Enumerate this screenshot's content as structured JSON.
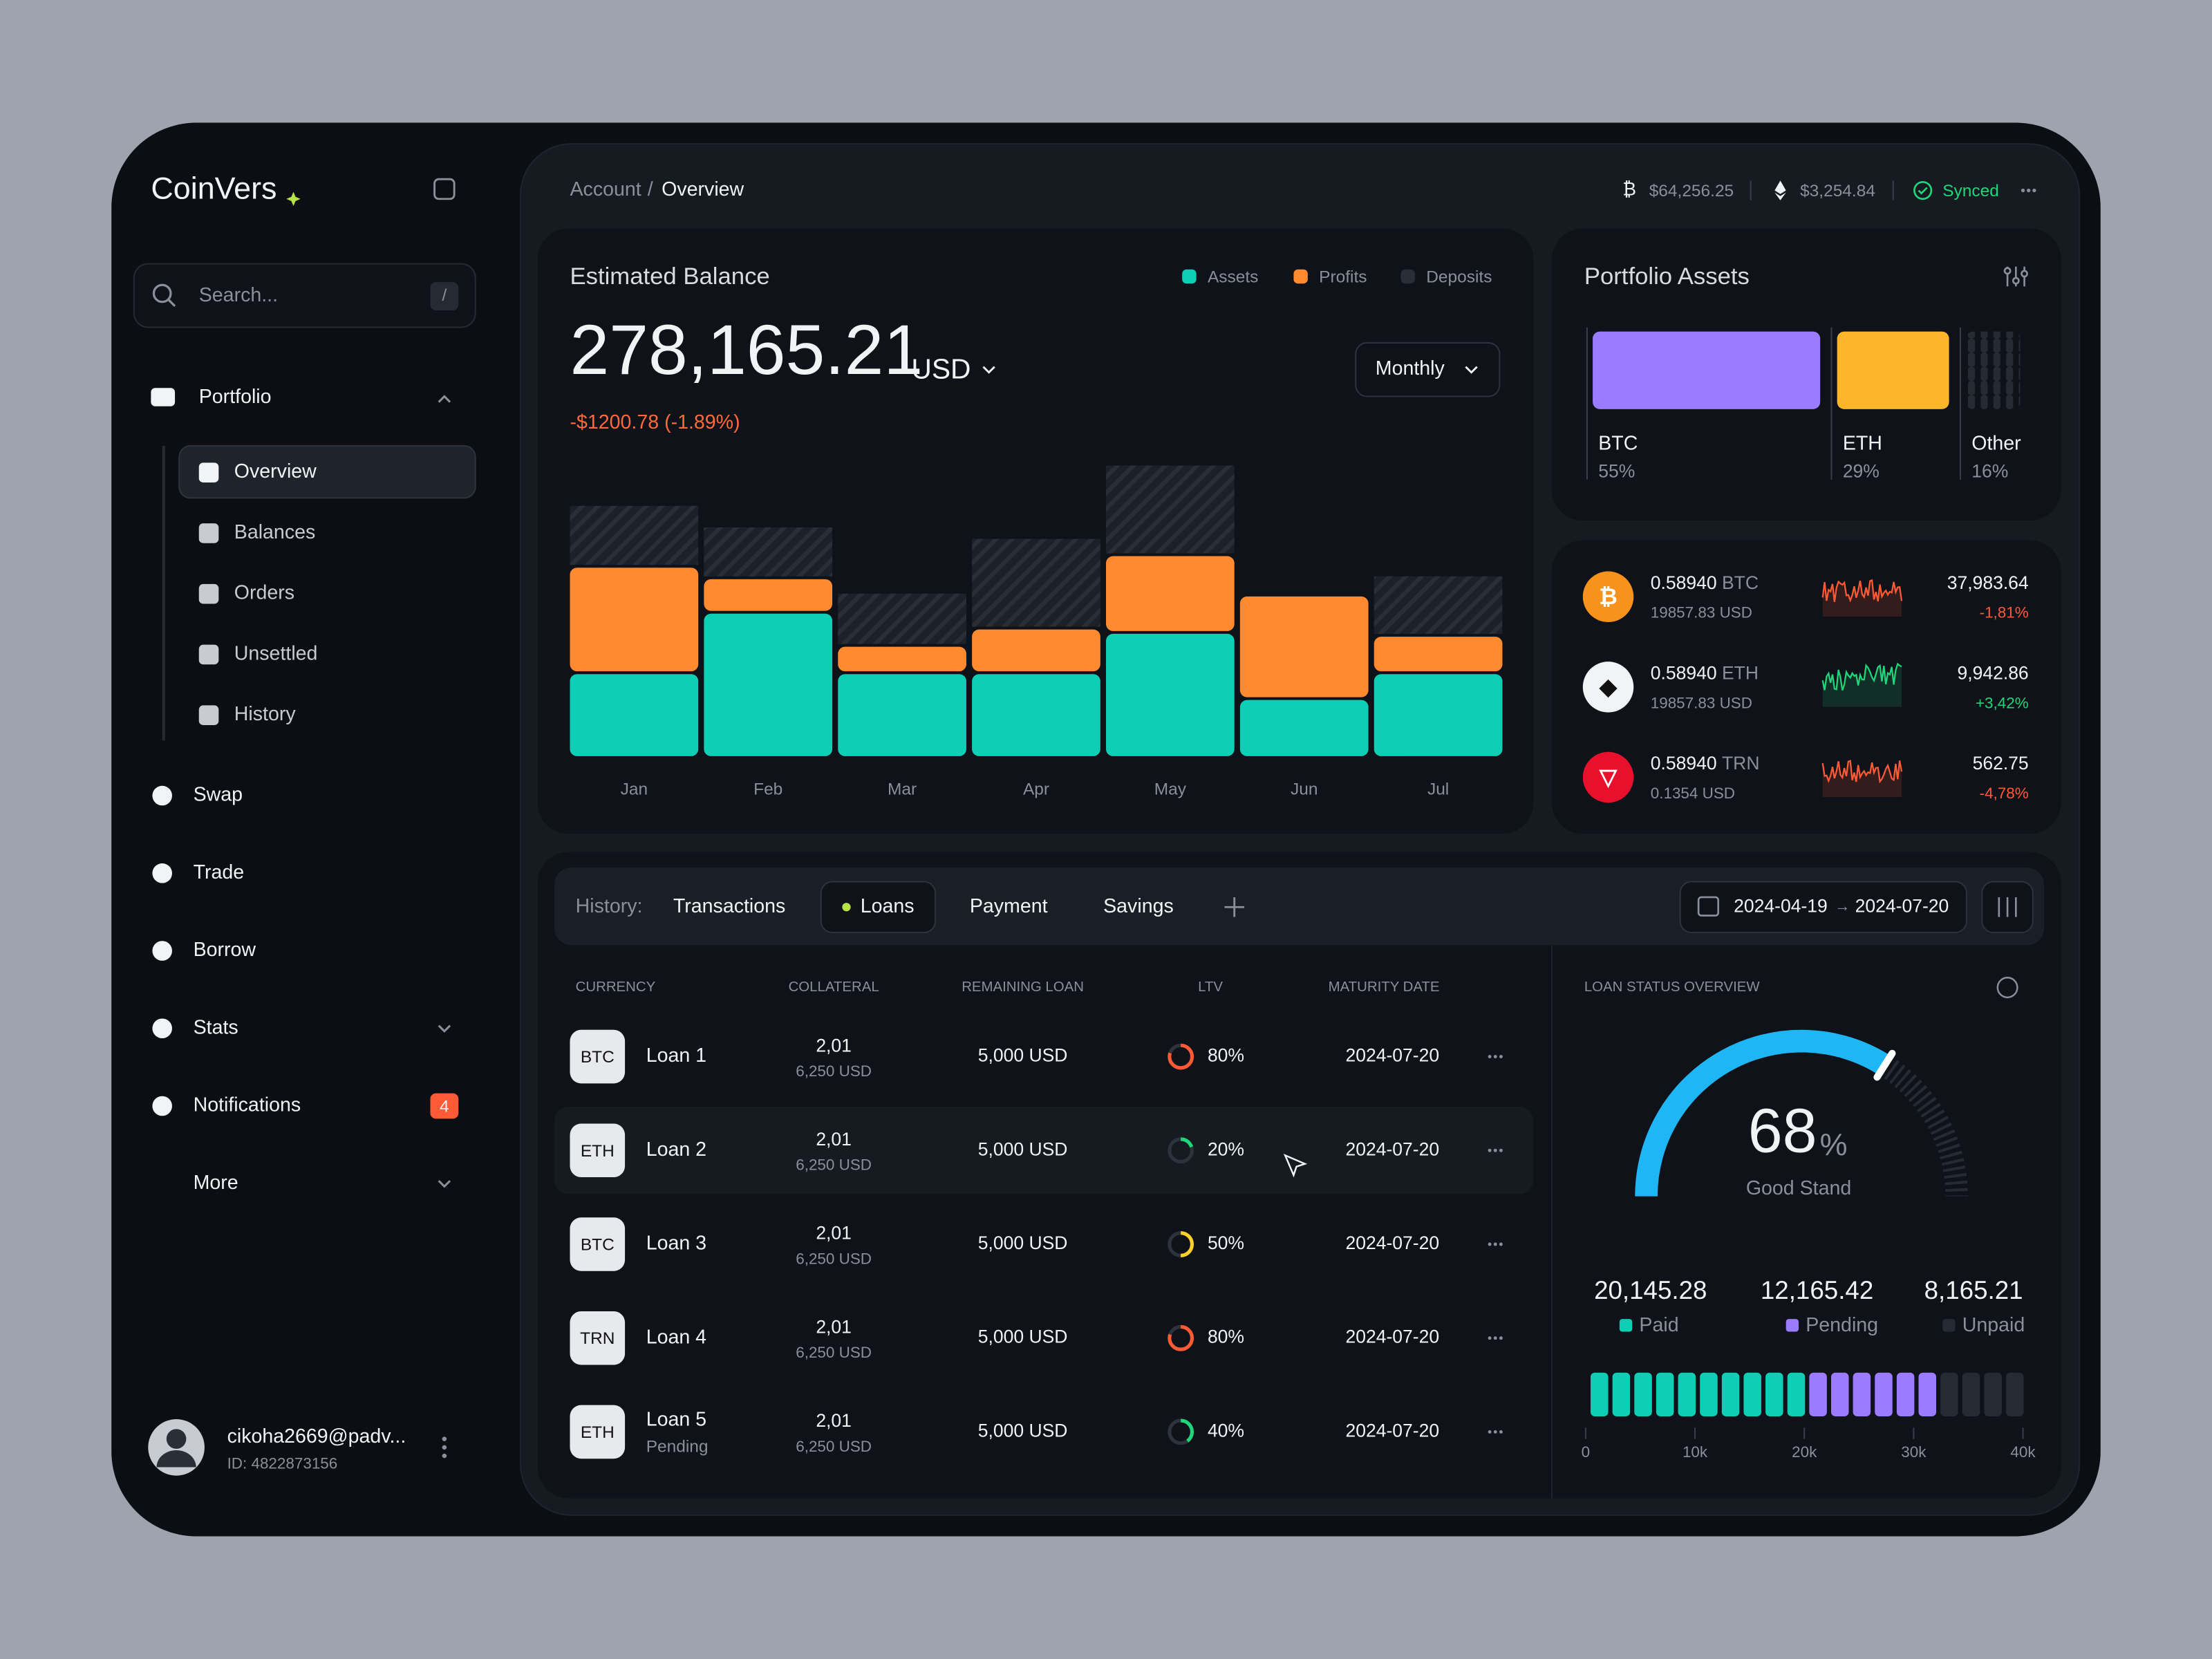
{
  "header": {
    "logo": "CoinVers",
    "breadcrumb_parent": "Account",
    "breadcrumb_sep": "/",
    "breadcrumb_current": "Overview",
    "btc_price": "$64,256.25",
    "eth_price": "$3,254.84",
    "sync_status": "Synced"
  },
  "sidebar": {
    "search_placeholder": "Search...",
    "search_shortcut": "/",
    "portfolio": "Portfolio",
    "portfolio_items": [
      "Overview",
      "Balances",
      "Orders",
      "Unsettled",
      "History"
    ],
    "nav": [
      "Swap",
      "Trade",
      "Borrow",
      "Stats",
      "Notifications",
      "More"
    ],
    "notifications_count": 4,
    "user_email": "cikoha2669@padv...",
    "user_id": "ID: 4822873156"
  },
  "balance": {
    "title": "Estimated Balance",
    "amount": "278,165.21",
    "currency": "USD",
    "change": "-$1200.78 (-1.89%)",
    "period": "Monthly"
  },
  "chart_data": {
    "type": "bar",
    "stacked": true,
    "categories": [
      "Jan",
      "Feb",
      "Mar",
      "Apr",
      "May",
      "Jun",
      "Jul"
    ],
    "series": [
      {
        "name": "Assets",
        "color": "#0ecfb6",
        "values": [
          59,
          101,
          59,
          59,
          87,
          41,
          59
        ]
      },
      {
        "name": "Profits",
        "color": "#ff8a30",
        "values": [
          74,
          24,
          19,
          31,
          54,
          72,
          26
        ]
      },
      {
        "name": "Deposits",
        "color": "#2a2e37",
        "values": [
          43,
          36,
          37,
          63,
          63,
          0,
          42
        ]
      }
    ]
  },
  "portfolio_assets": {
    "title": "Portfolio Assets",
    "assets": [
      {
        "name": "BTC",
        "share": {
          "value": 55,
          "label": "55%"
        },
        "color": "#9b7bff"
      },
      {
        "name": "ETH",
        "share": {
          "value": 29,
          "label": "29%"
        },
        "color": "#fdb52a"
      },
      {
        "name": "Other",
        "share": {
          "value": 16,
          "label": "16%"
        },
        "color": "#2a2e37"
      }
    ]
  },
  "coins": [
    {
      "amount": "0.58940",
      "symbol": "BTC",
      "usd": "19857.83 USD",
      "price": "37,983.64",
      "change": "-1,81%",
      "icon_color": "#f7931a",
      "color": "#ff5a36"
    },
    {
      "amount": "0.58940",
      "symbol": "ETH",
      "usd": "19857.83 USD",
      "price": "9,942.86",
      "change": "+3,42%",
      "icon_color": "#f2f3f5",
      "color": "#1fd67a"
    },
    {
      "amount": "0.58940",
      "symbol": "TRN",
      "usd": "0.1354 USD",
      "price": "562.75",
      "change": "-4,78%",
      "icon_color": "#e8112d",
      "color": "#ff5a36"
    }
  ],
  "history": {
    "label": "History:",
    "tabs": [
      "Transactions",
      "Loans",
      "Payment",
      "Savings"
    ],
    "active_tab": 1,
    "date_from": "2024-04-19",
    "date_arrow": "→",
    "date_to": "2024-07-20"
  },
  "table": {
    "columns": [
      "CURRENCY",
      "COLLATERAL",
      "REMAINING LOAN",
      "LTV",
      "MATURITY DATE"
    ],
    "highlighted_row": 1,
    "rows": [
      {
        "currency": "BTC",
        "name": "Loan 1",
        "collateral": "2,01",
        "collateral_usd": "6,250 USD",
        "remaining": "5,000 USD",
        "ltv": {
          "value": 80,
          "label": "80%"
        },
        "ltv_color": "#ff5a36",
        "maturity": "2024-07-20"
      },
      {
        "currency": "ETH",
        "name": "Loan 2",
        "collateral": "2,01",
        "collateral_usd": "6,250 USD",
        "remaining": "5,000 USD",
        "ltv": {
          "value": 20,
          "label": "20%"
        },
        "ltv_color": "#1fd67a",
        "maturity": "2024-07-20"
      },
      {
        "currency": "BTC",
        "name": "Loan 3",
        "collateral": "2,01",
        "collateral_usd": "6,250 USD",
        "remaining": "5,000 USD",
        "ltv": {
          "value": 50,
          "label": "50%"
        },
        "ltv_color": "#fdd02a",
        "maturity": "2024-07-20"
      },
      {
        "currency": "TRN",
        "name": "Loan 4",
        "collateral": "2,01",
        "collateral_usd": "6,250 USD",
        "remaining": "5,000 USD",
        "ltv": {
          "value": 80,
          "label": "80%"
        },
        "ltv_color": "#ff5a36",
        "maturity": "2024-07-20"
      },
      {
        "currency": "ETH",
        "name": "Loan 5",
        "status": "Pending",
        "collateral": "2,01",
        "collateral_usd": "6,250 USD",
        "remaining": "5,000 USD",
        "ltv": {
          "value": 40,
          "label": "40%"
        },
        "ltv_color": "#1fd67a",
        "maturity": "2024-07-20"
      }
    ]
  },
  "loan_status": {
    "title": "LOAN STATUS OVERVIEW",
    "gauge_value": 68,
    "gauge_unit": "%",
    "gauge_label": "Good Stand",
    "segments": [
      {
        "name": "Paid",
        "amount": {
          "value": 20145.28,
          "label": "20,145.28"
        },
        "color": "#0ecfb6"
      },
      {
        "name": "Pending",
        "amount": {
          "value": 12165.42,
          "label": "12,165.42"
        },
        "color": "#9b7bff"
      },
      {
        "name": "Unpaid",
        "amount": {
          "value": 8165.21,
          "label": "8,165.21"
        },
        "color": "#262a33"
      }
    ],
    "xlim": [
      0,
      40000
    ],
    "xticks": [
      0,
      {
        "value": 10000,
        "label": "10k"
      },
      {
        "value": 20000,
        "label": "20k"
      },
      {
        "value": 30000,
        "label": "30k"
      },
      {
        "value": 40000,
        "label": "40k"
      }
    ]
  }
}
